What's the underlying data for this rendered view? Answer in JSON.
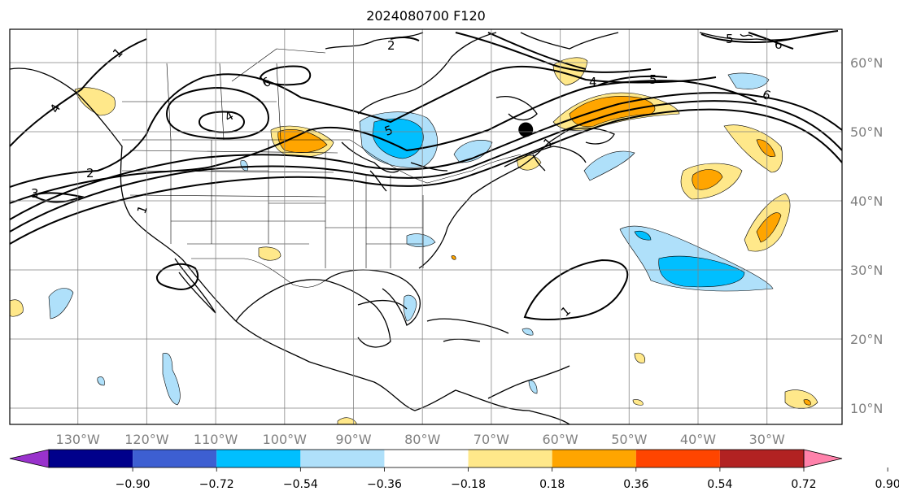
{
  "title": "2024080700 F120",
  "map": {
    "latitudes": [
      "60°N",
      "50°N",
      "40°N",
      "30°N",
      "20°N",
      "10°N"
    ],
    "longitudes": [
      "130°W",
      "120°W",
      "110°W",
      "100°W",
      "90°W",
      "80°W",
      "70°W",
      "60°W",
      "50°W",
      "40°W",
      "30°W"
    ],
    "marker": {
      "lat": 50.3,
      "lon": -65.0
    },
    "contour_labels": [
      "1",
      "2",
      "3",
      "4",
      "5",
      "6",
      "1",
      "4",
      "1",
      "4",
      "5",
      "6",
      "2",
      "1",
      "6"
    ]
  },
  "colorbar": {
    "ticks": [
      "−0.90",
      "−0.72",
      "−0.54",
      "−0.36",
      "−0.18",
      "0.18",
      "0.36",
      "0.54",
      "0.72",
      "0.90"
    ],
    "colors": [
      "#9932cc",
      "#00008b",
      "#3d5fd2",
      "#00bfff",
      "#afe0fa",
      "#ffffff",
      "#ffe88a",
      "#ffa500",
      "#ff4500",
      "#b22222",
      "#ff82ab"
    ]
  }
}
